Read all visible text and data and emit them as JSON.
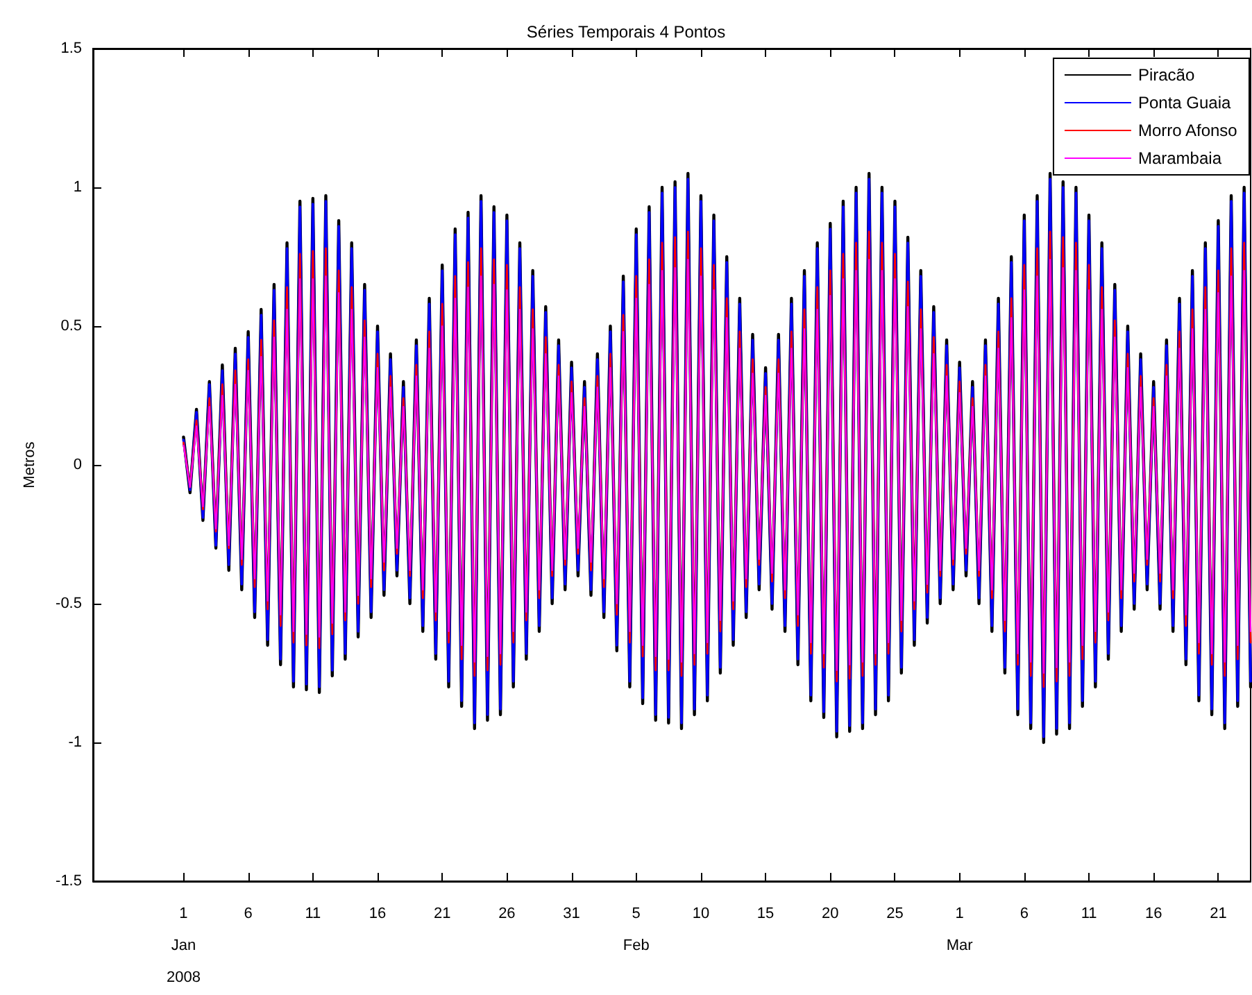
{
  "chart_data": {
    "type": "line",
    "title": "Séries Temporais 4 Pontos",
    "ylabel": "Metros",
    "legend": "top right",
    "grid": false,
    "xlim": [
      "2007-12-25",
      "2008-03-23T12:00"
    ],
    "xticks": [
      {
        "value": "2008-01-01",
        "label": "1\nJan\n2008"
      },
      {
        "value": "2008-01-06",
        "label": "6"
      },
      {
        "value": "2008-01-11",
        "label": "11"
      },
      {
        "value": "2008-01-16",
        "label": "16"
      },
      {
        "value": "2008-01-21",
        "label": "21"
      },
      {
        "value": "2008-01-26",
        "label": "26"
      },
      {
        "value": "2008-01-31",
        "label": "31"
      },
      {
        "value": "2008-02-05",
        "label": "5\nFeb"
      },
      {
        "value": "2008-02-10",
        "label": "10"
      },
      {
        "value": "2008-02-15",
        "label": "15"
      },
      {
        "value": "2008-02-20",
        "label": "20"
      },
      {
        "value": "2008-02-25",
        "label": "25"
      },
      {
        "value": "2008-03-01",
        "label": "1\nMar"
      },
      {
        "value": "2008-03-06",
        "label": "6"
      },
      {
        "value": "2008-03-11",
        "label": "11"
      },
      {
        "value": "2008-03-16",
        "label": "16"
      },
      {
        "value": "2008-03-21",
        "label": "21"
      }
    ],
    "ylim": [
      -1.5,
      1.5
    ],
    "yticks": [
      -1.5,
      -1,
      -0.5,
      0,
      0.5,
      1,
      1.5
    ],
    "x": [
      "2008-01-01T00:00",
      "2008-01-01T12:00",
      "2008-01-02T00:00",
      "2008-01-02T12:00",
      "2008-01-03T00:00",
      "2008-01-03T12:00",
      "2008-01-04T00:00",
      "2008-01-04T12:00",
      "2008-01-05T00:00",
      "2008-01-05T12:00",
      "2008-01-06T00:00",
      "2008-01-06T12:00",
      "2008-01-07T00:00",
      "2008-01-07T12:00",
      "2008-01-08T00:00",
      "2008-01-08T12:00",
      "2008-01-09T00:00",
      "2008-01-09T12:00",
      "2008-01-10T00:00",
      "2008-01-10T12:00",
      "2008-01-11T00:00",
      "2008-01-11T12:00",
      "2008-01-12T00:00",
      "2008-01-12T12:00",
      "2008-01-13T00:00",
      "2008-01-13T12:00",
      "2008-01-14T00:00",
      "2008-01-14T12:00",
      "2008-01-15T00:00",
      "2008-01-15T12:00",
      "2008-01-16T00:00",
      "2008-01-16T12:00",
      "2008-01-17T00:00",
      "2008-01-17T12:00",
      "2008-01-18T00:00",
      "2008-01-18T12:00",
      "2008-01-19T00:00",
      "2008-01-19T12:00",
      "2008-01-20T00:00",
      "2008-01-20T12:00",
      "2008-01-21T00:00",
      "2008-01-21T12:00",
      "2008-01-22T00:00",
      "2008-01-22T12:00",
      "2008-01-23T00:00",
      "2008-01-23T12:00",
      "2008-01-24T00:00",
      "2008-01-24T12:00",
      "2008-01-25T00:00",
      "2008-01-25T12:00",
      "2008-01-26T00:00",
      "2008-01-26T12:00",
      "2008-01-27T00:00",
      "2008-01-27T12:00",
      "2008-01-28T00:00",
      "2008-01-28T12:00",
      "2008-01-29T00:00",
      "2008-01-29T12:00",
      "2008-01-30T00:00",
      "2008-01-30T12:00",
      "2008-01-31T00:00",
      "2008-01-31T12:00",
      "2008-02-01T00:00",
      "2008-02-01T12:00",
      "2008-02-02T00:00",
      "2008-02-02T12:00",
      "2008-02-03T00:00",
      "2008-02-03T12:00",
      "2008-02-04T00:00",
      "2008-02-04T12:00",
      "2008-02-05T00:00",
      "2008-02-05T12:00",
      "2008-02-06T00:00",
      "2008-02-06T12:00",
      "2008-02-07T00:00",
      "2008-02-07T12:00",
      "2008-02-08T00:00",
      "2008-02-08T12:00",
      "2008-02-09T00:00",
      "2008-02-09T12:00",
      "2008-02-10T00:00",
      "2008-02-10T12:00",
      "2008-02-11T00:00",
      "2008-02-11T12:00",
      "2008-02-12T00:00",
      "2008-02-12T12:00",
      "2008-02-13T00:00",
      "2008-02-13T12:00",
      "2008-02-14T00:00",
      "2008-02-14T12:00",
      "2008-02-15T00:00",
      "2008-02-15T12:00",
      "2008-02-16T00:00",
      "2008-02-16T12:00",
      "2008-02-17T00:00",
      "2008-02-17T12:00",
      "2008-02-18T00:00",
      "2008-02-18T12:00",
      "2008-02-19T00:00",
      "2008-02-19T12:00",
      "2008-02-20T00:00",
      "2008-02-20T12:00",
      "2008-02-21T00:00",
      "2008-02-21T12:00",
      "2008-02-22T00:00",
      "2008-02-22T12:00",
      "2008-02-23T00:00",
      "2008-02-23T12:00",
      "2008-02-24T00:00",
      "2008-02-24T12:00",
      "2008-02-25T00:00",
      "2008-02-25T12:00",
      "2008-02-26T00:00",
      "2008-02-26T12:00",
      "2008-02-27T00:00",
      "2008-02-27T12:00",
      "2008-02-28T00:00",
      "2008-02-28T12:00",
      "2008-02-29T00:00",
      "2008-02-29T12:00",
      "2008-03-01T00:00",
      "2008-03-01T12:00",
      "2008-03-02T00:00",
      "2008-03-02T12:00",
      "2008-03-03T00:00",
      "2008-03-03T12:00",
      "2008-03-04T00:00",
      "2008-03-04T12:00",
      "2008-03-05T00:00",
      "2008-03-05T12:00",
      "2008-03-06T00:00",
      "2008-03-06T12:00",
      "2008-03-07T00:00",
      "2008-03-07T12:00",
      "2008-03-08T00:00",
      "2008-03-08T12:00",
      "2008-03-09T00:00",
      "2008-03-09T12:00",
      "2008-03-10T00:00",
      "2008-03-10T12:00",
      "2008-03-11T00:00",
      "2008-03-11T12:00",
      "2008-03-12T00:00",
      "2008-03-12T12:00",
      "2008-03-13T00:00",
      "2008-03-13T12:00",
      "2008-03-14T00:00",
      "2008-03-14T12:00",
      "2008-03-15T00:00",
      "2008-03-15T12:00",
      "2008-03-16T00:00",
      "2008-03-16T12:00",
      "2008-03-17T00:00",
      "2008-03-17T12:00",
      "2008-03-18T00:00",
      "2008-03-18T12:00",
      "2008-03-19T00:00",
      "2008-03-19T12:00",
      "2008-03-20T00:00",
      "2008-03-20T12:00",
      "2008-03-21T00:00",
      "2008-03-21T12:00",
      "2008-03-22T00:00",
      "2008-03-22T12:00",
      "2008-03-23T00:00",
      "2008-03-23T12:00"
    ],
    "series": [
      {
        "name": "Piracão",
        "color": "#000000",
        "values": [
          0.1,
          -0.1,
          0.2,
          -0.2,
          0.3,
          -0.3,
          0.36,
          -0.38,
          0.42,
          -0.45,
          0.48,
          -0.55,
          0.56,
          -0.65,
          0.65,
          -0.72,
          0.8,
          -0.8,
          0.95,
          -0.81,
          0.96,
          -0.82,
          0.97,
          -0.76,
          0.88,
          -0.7,
          0.8,
          -0.62,
          0.65,
          -0.55,
          0.5,
          -0.47,
          0.4,
          -0.4,
          0.3,
          -0.5,
          0.45,
          -0.6,
          0.6,
          -0.7,
          0.72,
          -0.8,
          0.85,
          -0.87,
          0.91,
          -0.95,
          0.97,
          -0.92,
          0.93,
          -0.9,
          0.9,
          -0.8,
          0.8,
          -0.7,
          0.7,
          -0.6,
          0.57,
          -0.5,
          0.45,
          -0.45,
          0.37,
          -0.4,
          0.3,
          -0.47,
          0.4,
          -0.55,
          0.5,
          -0.67,
          0.68,
          -0.8,
          0.85,
          -0.86,
          0.93,
          -0.92,
          1.0,
          -0.93,
          1.02,
          -0.95,
          1.05,
          -0.9,
          0.97,
          -0.85,
          0.9,
          -0.75,
          0.75,
          -0.65,
          0.6,
          -0.55,
          0.47,
          -0.45,
          0.35,
          -0.52,
          0.47,
          -0.6,
          0.6,
          -0.72,
          0.7,
          -0.85,
          0.8,
          -0.91,
          0.87,
          -0.98,
          0.95,
          -0.96,
          1.0,
          -0.95,
          1.05,
          -0.9,
          1.0,
          -0.85,
          0.95,
          -0.75,
          0.82,
          -0.65,
          0.7,
          -0.57,
          0.57,
          -0.5,
          0.45,
          -0.45,
          0.37,
          -0.4,
          0.3,
          -0.5,
          0.45,
          -0.6,
          0.6,
          -0.75,
          0.75,
          -0.9,
          0.9,
          -0.95,
          0.97,
          -1.0,
          1.05,
          -0.97,
          1.02,
          -0.95,
          1.0,
          -0.87,
          0.9,
          -0.8,
          0.8,
          -0.7,
          0.65,
          -0.6,
          0.5,
          -0.52,
          0.4,
          -0.45,
          0.3,
          -0.52,
          0.45,
          -0.6,
          0.6,
          -0.72,
          0.7,
          -0.85,
          0.8,
          -0.9,
          0.88,
          -0.95,
          0.97,
          -0.87,
          1.0,
          -0.8
        ]
      },
      {
        "name": "Ponta Guaia",
        "color": "#0000ff",
        "values": [
          0.09,
          -0.09,
          0.19,
          -0.19,
          0.29,
          -0.29,
          0.34,
          -0.36,
          0.4,
          -0.43,
          0.46,
          -0.53,
          0.54,
          -0.63,
          0.63,
          -0.7,
          0.78,
          -0.78,
          0.93,
          -0.79,
          0.94,
          -0.8,
          0.95,
          -0.74,
          0.86,
          -0.68,
          0.78,
          -0.6,
          0.63,
          -0.53,
          0.48,
          -0.45,
          0.38,
          -0.38,
          0.28,
          -0.48,
          0.43,
          -0.58,
          0.58,
          -0.68,
          0.7,
          -0.78,
          0.83,
          -0.85,
          0.89,
          -0.93,
          0.95,
          -0.9,
          0.91,
          -0.88,
          0.88,
          -0.78,
          0.78,
          -0.68,
          0.68,
          -0.58,
          0.55,
          -0.48,
          0.43,
          -0.43,
          0.35,
          -0.38,
          0.28,
          -0.45,
          0.38,
          -0.53,
          0.48,
          -0.65,
          0.66,
          -0.78,
          0.83,
          -0.84,
          0.91,
          -0.9,
          0.98,
          -0.91,
          1.0,
          -0.93,
          1.03,
          -0.88,
          0.95,
          -0.83,
          0.88,
          -0.73,
          0.73,
          -0.63,
          0.58,
          -0.53,
          0.45,
          -0.43,
          0.33,
          -0.5,
          0.45,
          -0.58,
          0.58,
          -0.7,
          0.68,
          -0.83,
          0.78,
          -0.89,
          0.85,
          -0.96,
          0.93,
          -0.94,
          0.98,
          -0.93,
          1.03,
          -0.88,
          0.98,
          -0.83,
          0.93,
          -0.73,
          0.8,
          -0.63,
          0.68,
          -0.55,
          0.55,
          -0.48,
          0.43,
          -0.43,
          0.35,
          -0.38,
          0.28,
          -0.48,
          0.43,
          -0.58,
          0.58,
          -0.73,
          0.73,
          -0.88,
          0.88,
          -0.93,
          0.95,
          -0.98,
          1.03,
          -0.95,
          1.0,
          -0.93,
          0.98,
          -0.85,
          0.88,
          -0.78,
          0.78,
          -0.68,
          0.63,
          -0.58,
          0.48,
          -0.5,
          0.38,
          -0.43,
          0.28,
          -0.5,
          0.43,
          -0.58,
          0.58,
          -0.7,
          0.68,
          -0.83,
          0.78,
          -0.88,
          0.86,
          -0.93,
          0.95,
          -0.85,
          0.98,
          -0.78
        ]
      },
      {
        "name": "Morro Afonso",
        "color": "#ff0000",
        "values": [
          0.08,
          -0.08,
          0.16,
          -0.16,
          0.24,
          -0.24,
          0.29,
          -0.3,
          0.34,
          -0.36,
          0.38,
          -0.44,
          0.45,
          -0.52,
          0.52,
          -0.58,
          0.64,
          -0.64,
          0.76,
          -0.65,
          0.77,
          -0.66,
          0.78,
          -0.61,
          0.7,
          -0.56,
          0.64,
          -0.5,
          0.52,
          -0.44,
          0.4,
          -0.38,
          0.32,
          -0.32,
          0.24,
          -0.4,
          0.36,
          -0.48,
          0.48,
          -0.56,
          0.58,
          -0.64,
          0.68,
          -0.7,
          0.73,
          -0.76,
          0.78,
          -0.74,
          0.74,
          -0.72,
          0.72,
          -0.64,
          0.64,
          -0.56,
          0.56,
          -0.48,
          0.46,
          -0.4,
          0.36,
          -0.36,
          0.3,
          -0.32,
          0.24,
          -0.38,
          0.32,
          -0.44,
          0.4,
          -0.54,
          0.54,
          -0.64,
          0.68,
          -0.69,
          0.74,
          -0.74,
          0.8,
          -0.74,
          0.82,
          -0.76,
          0.84,
          -0.72,
          0.78,
          -0.68,
          0.72,
          -0.6,
          0.6,
          -0.52,
          0.48,
          -0.44,
          0.38,
          -0.36,
          0.28,
          -0.42,
          0.38,
          -0.48,
          0.48,
          -0.58,
          0.56,
          -0.68,
          0.64,
          -0.73,
          0.7,
          -0.78,
          0.76,
          -0.77,
          0.8,
          -0.76,
          0.84,
          -0.72,
          0.8,
          -0.68,
          0.76,
          -0.6,
          0.66,
          -0.52,
          0.56,
          -0.46,
          0.46,
          -0.4,
          0.36,
          -0.36,
          0.3,
          -0.32,
          0.24,
          -0.4,
          0.36,
          -0.48,
          0.48,
          -0.6,
          0.6,
          -0.72,
          0.72,
          -0.76,
          0.78,
          -0.8,
          0.84,
          -0.78,
          0.82,
          -0.76,
          0.8,
          -0.7,
          0.72,
          -0.64,
          0.64,
          -0.56,
          0.52,
          -0.48,
          0.4,
          -0.42,
          0.32,
          -0.36,
          0.24,
          -0.42,
          0.36,
          -0.48,
          0.48,
          -0.58,
          0.56,
          -0.68,
          0.64,
          -0.72,
          0.7,
          -0.76,
          0.78,
          -0.7,
          0.8,
          -0.64
        ]
      },
      {
        "name": "Marambaia",
        "color": "#ff00ff",
        "values": [
          0.07,
          -0.08,
          0.14,
          -0.15,
          0.21,
          -0.23,
          0.25,
          -0.29,
          0.29,
          -0.34,
          0.34,
          -0.41,
          0.39,
          -0.49,
          0.46,
          -0.54,
          0.56,
          -0.6,
          0.67,
          -0.61,
          0.67,
          -0.62,
          0.68,
          -0.57,
          0.62,
          -0.53,
          0.56,
          -0.47,
          0.46,
          -0.41,
          0.35,
          -0.35,
          0.28,
          -0.3,
          0.21,
          -0.38,
          0.32,
          -0.45,
          0.42,
          -0.53,
          0.5,
          -0.6,
          0.6,
          -0.65,
          0.64,
          -0.71,
          0.68,
          -0.69,
          0.65,
          -0.68,
          0.63,
          -0.6,
          0.56,
          -0.53,
          0.49,
          -0.45,
          0.4,
          -0.38,
          0.32,
          -0.34,
          0.26,
          -0.3,
          0.21,
          -0.35,
          0.28,
          -0.41,
          0.35,
          -0.5,
          0.48,
          -0.6,
          0.6,
          -0.65,
          0.65,
          -0.69,
          0.7,
          -0.7,
          0.71,
          -0.71,
          0.74,
          -0.68,
          0.68,
          -0.64,
          0.63,
          -0.56,
          0.53,
          -0.49,
          0.42,
          -0.41,
          0.33,
          -0.34,
          0.25,
          -0.39,
          0.33,
          -0.45,
          0.42,
          -0.54,
          0.49,
          -0.64,
          0.56,
          -0.68,
          0.61,
          -0.74,
          0.67,
          -0.72,
          0.7,
          -0.71,
          0.74,
          -0.68,
          0.7,
          -0.64,
          0.67,
          -0.56,
          0.57,
          -0.49,
          0.49,
          -0.43,
          0.4,
          -0.38,
          0.32,
          -0.34,
          0.26,
          -0.3,
          0.21,
          -0.38,
          0.32,
          -0.45,
          0.42,
          -0.56,
          0.53,
          -0.68,
          0.63,
          -0.71,
          0.68,
          -0.75,
          0.74,
          -0.73,
          0.71,
          -0.71,
          0.7,
          -0.65,
          0.63,
          -0.6,
          0.56,
          -0.53,
          0.46,
          -0.45,
          0.35,
          -0.39,
          0.28,
          -0.34,
          0.21,
          -0.39,
          0.32,
          -0.45,
          0.42,
          -0.54,
          0.49,
          -0.64,
          0.56,
          -0.68,
          0.62,
          -0.71,
          0.68,
          -0.65,
          0.7,
          -0.6
        ]
      }
    ]
  }
}
